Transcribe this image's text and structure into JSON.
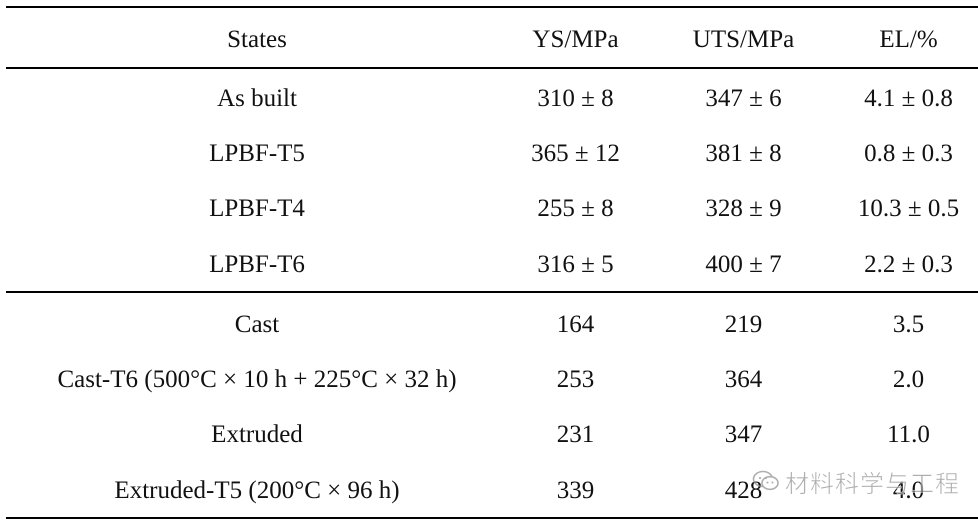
{
  "table": {
    "headers": {
      "state": "States",
      "ys": "YS/MPa",
      "uts": "UTS/MPa",
      "el": "EL/%"
    },
    "rows": [
      {
        "state": "As built",
        "ys": "310 ± 8",
        "uts": "347 ± 6",
        "el": "4.1 ± 0.8"
      },
      {
        "state": "LPBF-T5",
        "ys": "365 ± 12",
        "uts": "381 ± 8",
        "el": "0.8 ± 0.3"
      },
      {
        "state": "LPBF-T4",
        "ys": "255 ± 8",
        "uts": "328 ± 9",
        "el": "10.3 ± 0.5"
      },
      {
        "state": "LPBF-T6",
        "ys": "316 ± 5",
        "uts": "400 ± 7",
        "el": "2.2 ± 0.3"
      },
      {
        "state": "Cast",
        "ys": "164",
        "uts": "219",
        "el": "3.5"
      },
      {
        "state": "Cast-T6 (500°C × 10 h + 225°C × 32 h)",
        "ys": "253",
        "uts": "364",
        "el": "2.0"
      },
      {
        "state": "Extruded",
        "ys": "231",
        "uts": "347",
        "el": "11.0"
      },
      {
        "state": "Extruded-T5 (200°C × 96 h)",
        "ys": "339",
        "uts": "428",
        "el": "4.0"
      }
    ]
  },
  "watermark": {
    "text": "材料科学与工程",
    "icon": "wechat-logo-icon",
    "color": "#8f8f8f"
  }
}
